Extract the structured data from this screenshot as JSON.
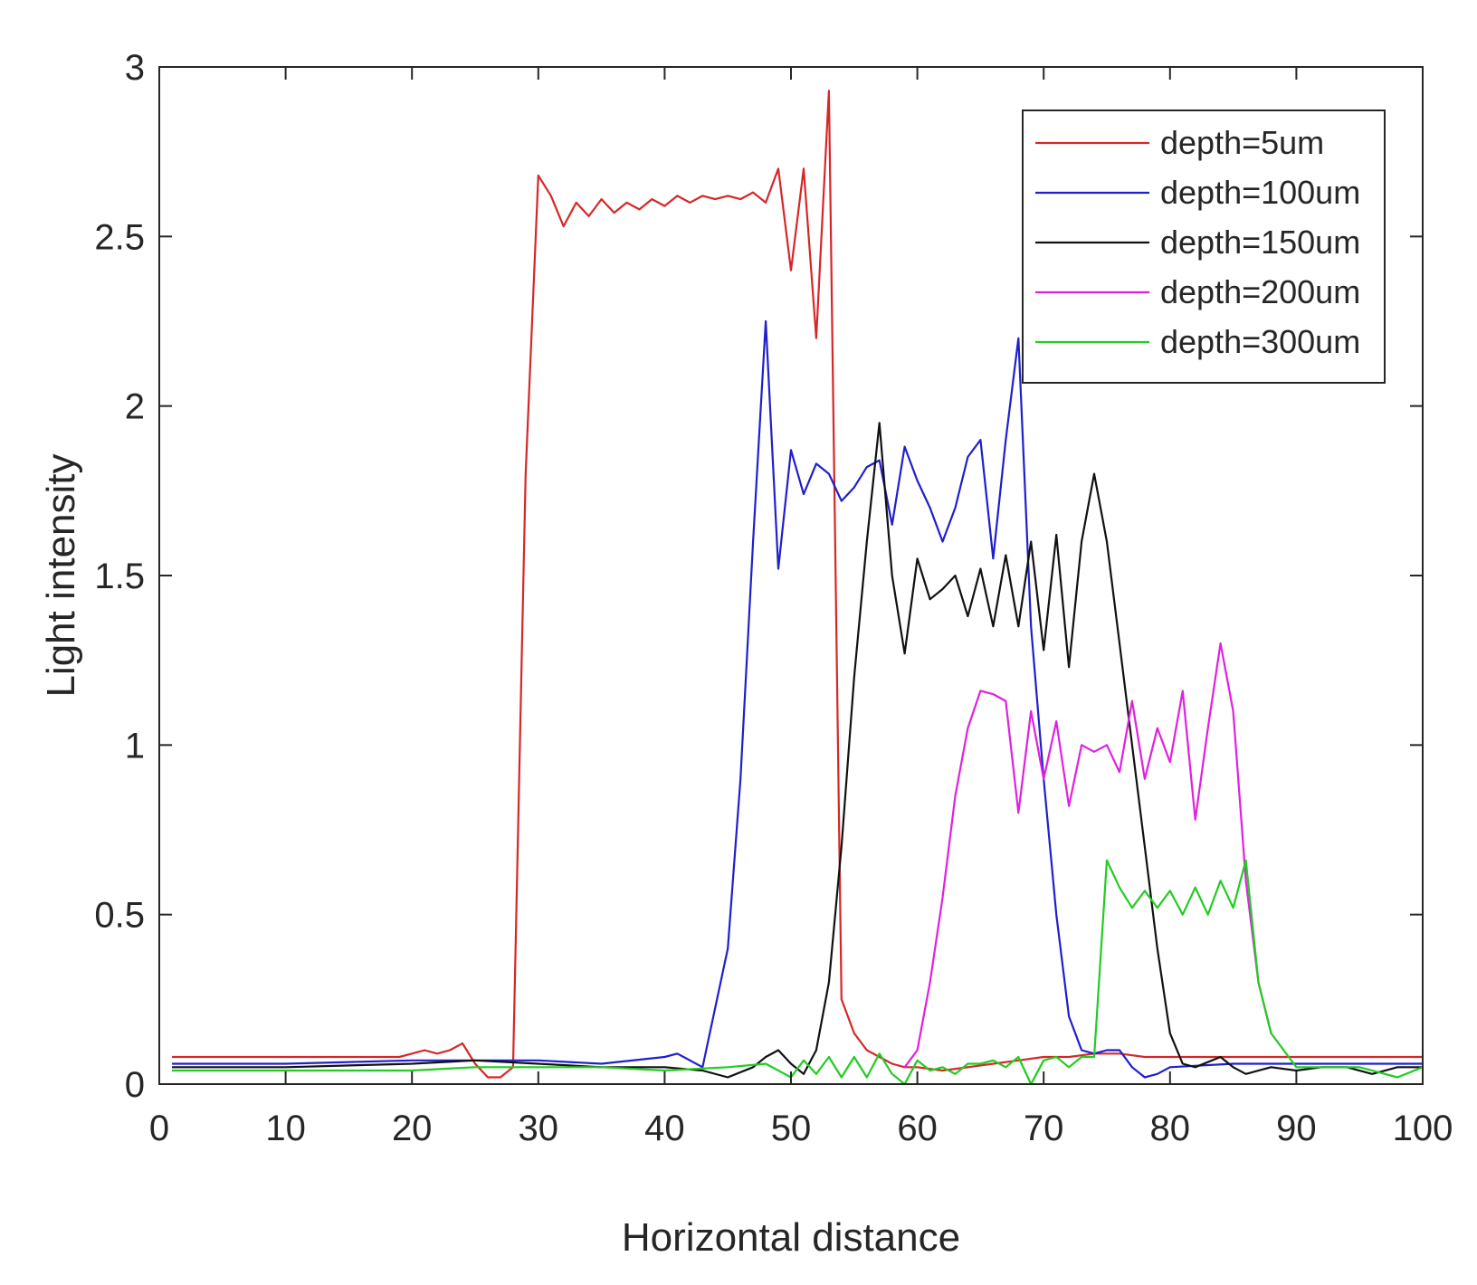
{
  "chart_data": {
    "type": "line",
    "xlabel": "Horizontal distance",
    "ylabel": "Light intensity",
    "xlim": [
      0,
      100
    ],
    "ylim": [
      0,
      3
    ],
    "xticks": [
      "0",
      "10",
      "20",
      "30",
      "40",
      "50",
      "60",
      "70",
      "80",
      "90",
      "100"
    ],
    "yticks": [
      "0",
      "0.5",
      "1",
      "1.5",
      "2",
      "2.5",
      "3"
    ],
    "grid": false,
    "legend_position": "top-right",
    "series": [
      {
        "name": "depth=5um",
        "color": "#d62728",
        "x": [
          1,
          19,
          20,
          21,
          22,
          23,
          24,
          25,
          26,
          27,
          28,
          29,
          30,
          31,
          32,
          33,
          34,
          35,
          36,
          37,
          38,
          39,
          40,
          41,
          42,
          43,
          44,
          45,
          46,
          47,
          48,
          49,
          50,
          51,
          52,
          53,
          54,
          55,
          56,
          57,
          58,
          59,
          60,
          62,
          64,
          66,
          68,
          70,
          72,
          74,
          76,
          78,
          80,
          100
        ],
        "y": [
          0.08,
          0.08,
          0.09,
          0.1,
          0.09,
          0.1,
          0.12,
          0.06,
          0.02,
          0.02,
          0.05,
          1.8,
          2.68,
          2.62,
          2.53,
          2.6,
          2.56,
          2.61,
          2.57,
          2.6,
          2.58,
          2.61,
          2.59,
          2.62,
          2.6,
          2.62,
          2.61,
          2.62,
          2.61,
          2.63,
          2.6,
          2.7,
          2.4,
          2.7,
          2.2,
          2.93,
          0.25,
          0.15,
          0.1,
          0.08,
          0.06,
          0.05,
          0.05,
          0.04,
          0.05,
          0.06,
          0.07,
          0.08,
          0.08,
          0.09,
          0.09,
          0.08,
          0.08,
          0.08
        ]
      },
      {
        "name": "depth=100um",
        "color": "#1f1fcc",
        "x": [
          1,
          10,
          20,
          30,
          35,
          40,
          41,
          43,
          45,
          46,
          47,
          48,
          49,
          50,
          51,
          52,
          53,
          54,
          55,
          56,
          57,
          58,
          59,
          60,
          61,
          62,
          63,
          64,
          65,
          66,
          67,
          68,
          69,
          70,
          71,
          72,
          73,
          74,
          75,
          76,
          77,
          78,
          79,
          80,
          85,
          100
        ],
        "y": [
          0.06,
          0.06,
          0.07,
          0.07,
          0.06,
          0.08,
          0.09,
          0.05,
          0.4,
          0.9,
          1.6,
          2.25,
          1.52,
          1.87,
          1.74,
          1.83,
          1.8,
          1.72,
          1.76,
          1.82,
          1.84,
          1.65,
          1.88,
          1.78,
          1.7,
          1.6,
          1.7,
          1.85,
          1.9,
          1.55,
          1.9,
          2.2,
          1.35,
          0.9,
          0.5,
          0.2,
          0.1,
          0.09,
          0.1,
          0.1,
          0.05,
          0.02,
          0.03,
          0.05,
          0.06,
          0.06
        ]
      },
      {
        "name": "depth=150um",
        "color": "#111111",
        "x": [
          1,
          10,
          20,
          25,
          30,
          35,
          40,
          43,
          45,
          47,
          48,
          49,
          50,
          51,
          52,
          53,
          54,
          55,
          56,
          57,
          58,
          59,
          60,
          61,
          62,
          63,
          64,
          65,
          66,
          67,
          68,
          69,
          70,
          71,
          72,
          73,
          74,
          75,
          76,
          77,
          78,
          79,
          80,
          81,
          82,
          84,
          85,
          86,
          88,
          90,
          92,
          94,
          96,
          98,
          100
        ],
        "y": [
          0.05,
          0.05,
          0.06,
          0.07,
          0.06,
          0.05,
          0.05,
          0.04,
          0.02,
          0.05,
          0.08,
          0.1,
          0.06,
          0.03,
          0.1,
          0.3,
          0.7,
          1.2,
          1.6,
          1.95,
          1.5,
          1.27,
          1.55,
          1.43,
          1.46,
          1.5,
          1.38,
          1.52,
          1.35,
          1.56,
          1.35,
          1.6,
          1.28,
          1.62,
          1.23,
          1.6,
          1.8,
          1.6,
          1.3,
          1.0,
          0.7,
          0.4,
          0.15,
          0.06,
          0.05,
          0.08,
          0.05,
          0.03,
          0.05,
          0.04,
          0.05,
          0.05,
          0.03,
          0.05,
          0.05
        ]
      },
      {
        "name": "depth=200um",
        "color": "#e020e0",
        "x": [
          59,
          60,
          61,
          62,
          63,
          64,
          65,
          66,
          67,
          68,
          69,
          70,
          71,
          72,
          73,
          74,
          75,
          76,
          77,
          78,
          79,
          80,
          81,
          82,
          83,
          84,
          85,
          86,
          87,
          88
        ],
        "y": [
          0.05,
          0.1,
          0.3,
          0.55,
          0.85,
          1.05,
          1.16,
          1.15,
          1.13,
          0.8,
          1.1,
          0.9,
          1.07,
          0.82,
          1.0,
          0.98,
          1.0,
          0.92,
          1.13,
          0.9,
          1.05,
          0.95,
          1.16,
          0.78,
          1.05,
          1.3,
          1.1,
          0.6,
          0.3,
          0.15
        ]
      },
      {
        "name": "depth=300um",
        "color": "#22cc22",
        "x": [
          1,
          10,
          20,
          25,
          30,
          35,
          40,
          45,
          48,
          50,
          51,
          52,
          53,
          54,
          55,
          56,
          57,
          58,
          59,
          60,
          61,
          62,
          63,
          64,
          65,
          66,
          67,
          68,
          69,
          70,
          71,
          72,
          73,
          74,
          75,
          76,
          77,
          78,
          79,
          80,
          81,
          82,
          83,
          84,
          85,
          86,
          87,
          88,
          89,
          90,
          92,
          95,
          98,
          100
        ],
        "y": [
          0.04,
          0.04,
          0.04,
          0.05,
          0.05,
          0.05,
          0.04,
          0.05,
          0.06,
          0.02,
          0.07,
          0.03,
          0.08,
          0.02,
          0.08,
          0.02,
          0.09,
          0.03,
          0.0,
          0.07,
          0.04,
          0.05,
          0.03,
          0.06,
          0.06,
          0.07,
          0.05,
          0.08,
          0.0,
          0.07,
          0.08,
          0.05,
          0.08,
          0.08,
          0.66,
          0.58,
          0.52,
          0.57,
          0.52,
          0.57,
          0.5,
          0.58,
          0.5,
          0.6,
          0.52,
          0.66,
          0.3,
          0.15,
          0.1,
          0.05,
          0.05,
          0.05,
          0.02,
          0.05
        ]
      }
    ]
  }
}
